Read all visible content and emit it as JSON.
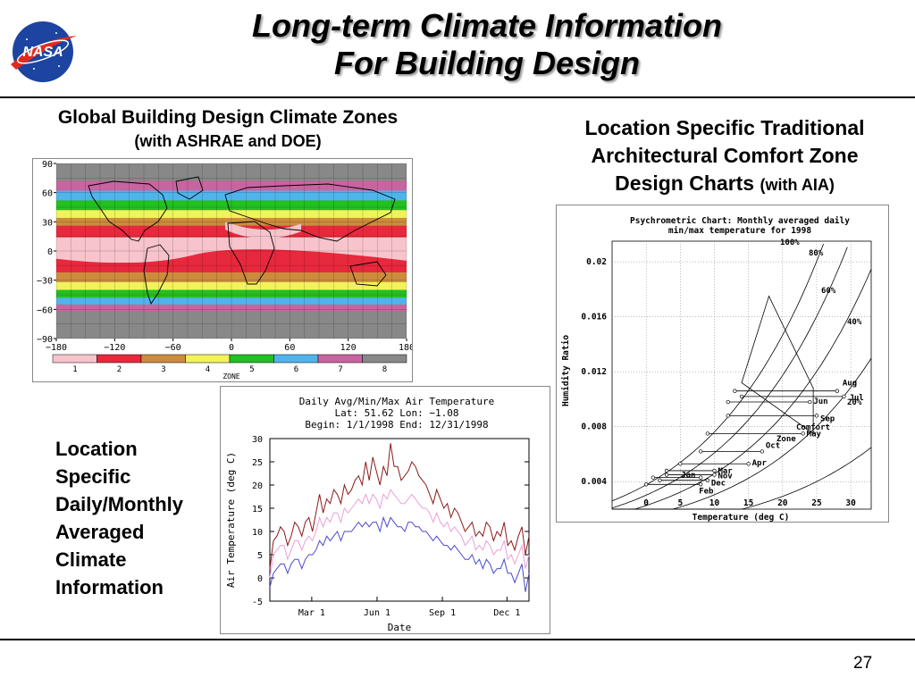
{
  "slide": {
    "title_line1": "Long-term Climate Information",
    "title_line2": "For Building Design",
    "logo_text": "NASA",
    "page_number": "27"
  },
  "left_section": {
    "heading": "Global Building Design Climate Zones",
    "subheading": "(with ASHRAE and DOE)"
  },
  "right_section": {
    "heading_line1": "Location Specific Traditional",
    "heading_line2": "Architectural Comfort Zone",
    "heading_line3": "Design Charts",
    "heading_suffix": "(with AIA)"
  },
  "middle_text": [
    "Location",
    "Specific",
    "Daily/Monthly",
    "Averaged",
    "Climate",
    "Information"
  ],
  "colors": {
    "zone1": "#f7c4cc",
    "zone2": "#e8283c",
    "zone3": "#cc8c3c",
    "zone4": "#f2f25a",
    "zone5": "#22c020",
    "zone6": "#50b4ec",
    "zone7": "#c864a0",
    "zone8": "#888888",
    "series_max": "#8b1a1a",
    "series_avg": "#e8a0d8",
    "series_min": "#4a4acc"
  },
  "map": {
    "y_ticks": [
      "90",
      "60",
      "30",
      "0",
      "−30",
      "−60",
      "−90"
    ],
    "x_ticks": [
      "−180",
      "−120",
      "−60",
      "0",
      "60",
      "120",
      "180"
    ],
    "legend_title": "ZONE",
    "zones": [
      "1",
      "2",
      "3",
      "4",
      "5",
      "6",
      "7",
      "8"
    ]
  },
  "chart_data": [
    {
      "type": "line",
      "title_lines": [
        "Daily Avg/Min/Max Air Temperature",
        "Lat: 51.62 Lon: −1.08",
        "Begin: 1/1/1998  End: 12/31/1998"
      ],
      "xlabel": "Date",
      "ylabel": "Air Temperature (deg C)",
      "x_tick_labels": [
        "Mar 1",
        "Jun 1",
        "Sep 1",
        "Dec 1"
      ],
      "x_tick_days": [
        59,
        151,
        243,
        334
      ],
      "xlim": [
        0,
        365
      ],
      "ylim": [
        -5,
        30
      ],
      "y_ticks": [
        -5,
        0,
        5,
        10,
        15,
        20,
        25,
        30
      ],
      "series": [
        {
          "values": [
            2,
            8,
            9,
            11,
            10,
            7,
            9,
            12,
            11,
            9,
            12,
            13,
            10,
            14,
            18,
            14,
            17,
            16,
            19,
            18,
            16,
            20,
            18,
            19,
            21,
            22,
            20,
            25,
            21,
            26,
            23,
            20,
            24,
            22,
            29,
            24,
            24,
            21,
            22,
            23,
            25,
            24,
            22,
            21,
            20,
            18,
            16,
            19,
            17,
            15,
            16,
            13,
            15,
            14,
            12,
            10,
            11,
            12,
            9,
            10,
            9,
            12,
            11,
            8,
            10,
            9,
            12,
            7,
            8,
            6,
            9,
            11,
            5,
            9
          ]
        },
        {
          "values": [
            0,
            5,
            6,
            7,
            7,
            4,
            6,
            8,
            8,
            6,
            8,
            9,
            8,
            10,
            13,
            11,
            13,
            12,
            14,
            14,
            12,
            15,
            14,
            15,
            16,
            17,
            16,
            18,
            16,
            18,
            17,
            15,
            18,
            17,
            19,
            18,
            17,
            16,
            16,
            17,
            18,
            17,
            16,
            15,
            15,
            14,
            12,
            14,
            12,
            11,
            12,
            10,
            11,
            10,
            9,
            7,
            8,
            9,
            6,
            7,
            6,
            8,
            7,
            5,
            6,
            6,
            8,
            4,
            5,
            3,
            5,
            7,
            2,
            5
          ]
        },
        {
          "values": [
            -2,
            1,
            2,
            3,
            3,
            1,
            3,
            4,
            4,
            2,
            4,
            5,
            5,
            6,
            8,
            7,
            9,
            8,
            9,
            10,
            8,
            10,
            10,
            10,
            11,
            12,
            11,
            12,
            11,
            12,
            12,
            10,
            13,
            11,
            13,
            12,
            11,
            11,
            10,
            12,
            12,
            11,
            11,
            10,
            10,
            9,
            8,
            9,
            8,
            7,
            7,
            6,
            7,
            6,
            5,
            4,
            4,
            5,
            3,
            4,
            2,
            4,
            3,
            1,
            2,
            2,
            4,
            1,
            1,
            -1,
            1,
            3,
            -3,
            1
          ]
        }
      ],
      "series_step_days": 5
    },
    {
      "type": "scatter",
      "title_lines": [
        "Psychrometric Chart: Monthly averaged daily",
        "min/max temperature for 1998"
      ],
      "xlabel": "Temperature (deg C)",
      "ylabel": "Humidity Ratio",
      "xlim": [
        -5,
        33
      ],
      "ylim": [
        0.002,
        0.0215
      ],
      "x_ticks": [
        0,
        5,
        10,
        15,
        20,
        25,
        30
      ],
      "y_tick_labels": [
        "0.004",
        "0.008",
        "0.012",
        "0.016",
        "0.02"
      ],
      "y_tick_values": [
        0.004,
        0.008,
        0.012,
        0.016,
        0.02
      ],
      "rh_labels": [
        "100%",
        "80%",
        "60%",
        "40%",
        "20%"
      ],
      "comfort_zone_label": [
        "Comfort",
        "Zone"
      ],
      "months": [
        {
          "name": "Jan",
          "tmin": 1,
          "tmax": 8,
          "w": 0.0043
        },
        {
          "name": "Feb",
          "tmin": 0,
          "tmax": 8,
          "w": 0.0038
        },
        {
          "name": "Mar",
          "tmin": 3,
          "tmax": 10,
          "w": 0.0048
        },
        {
          "name": "Apr",
          "tmin": 5,
          "tmax": 15,
          "w": 0.0053
        },
        {
          "name": "May",
          "tmin": 9,
          "tmax": 23,
          "w": 0.0075
        },
        {
          "name": "Jun",
          "tmin": 12,
          "tmax": 24,
          "w": 0.0098
        },
        {
          "name": "Jul",
          "tmin": 14,
          "tmax": 29,
          "w": 0.0102
        },
        {
          "name": "Aug",
          "tmin": 13,
          "tmax": 28,
          "w": 0.0106
        },
        {
          "name": "Sep",
          "tmin": 12,
          "tmax": 25,
          "w": 0.0088
        },
        {
          "name": "Oct",
          "tmin": 8,
          "tmax": 17,
          "w": 0.0062
        },
        {
          "name": "Nov",
          "tmin": 3,
          "tmax": 10,
          "w": 0.0045
        },
        {
          "name": "Dec",
          "tmin": 2,
          "tmax": 9,
          "w": 0.0041
        }
      ],
      "month_labels_visible": [
        "Jan",
        "Feb",
        "Mar",
        "Nov",
        "Dec",
        "Apr",
        "Oct",
        "May",
        "Jun",
        "Jul",
        "Aug",
        "Sep"
      ]
    }
  ]
}
